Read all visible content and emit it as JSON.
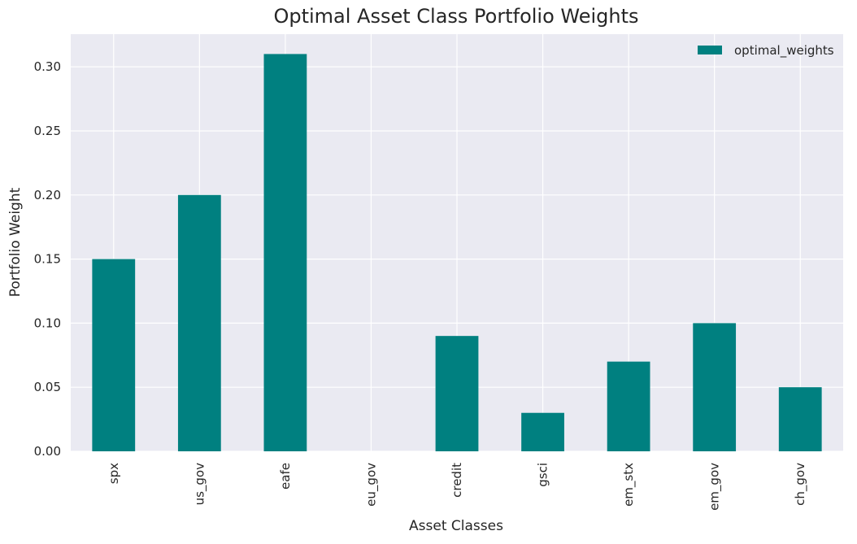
{
  "chart_data": {
    "type": "bar",
    "title": "Optimal Asset Class Portfolio Weights",
    "xlabel": "Asset Classes",
    "ylabel": "Portfolio Weight",
    "categories": [
      "spx",
      "us_gov",
      "eafe",
      "eu_gov",
      "credit",
      "gsci",
      "em_stx",
      "em_gov",
      "ch_gov"
    ],
    "series": [
      {
        "name": "optimal_weights",
        "values": [
          0.15,
          0.2,
          0.31,
          0.0,
          0.09,
          0.03,
          0.07,
          0.1,
          0.05
        ],
        "color": "#008080"
      }
    ],
    "ylim": [
      0,
      0.3255
    ],
    "yticks": [
      0.0,
      0.05,
      0.1,
      0.15,
      0.2,
      0.25,
      0.3
    ],
    "ytick_labels": [
      "0.00",
      "0.05",
      "0.10",
      "0.15",
      "0.20",
      "0.25",
      "0.30"
    ],
    "grid": true,
    "legend_position": "top-right",
    "background_color": "#EAEAF2",
    "grid_color": "#FFFFFF"
  }
}
